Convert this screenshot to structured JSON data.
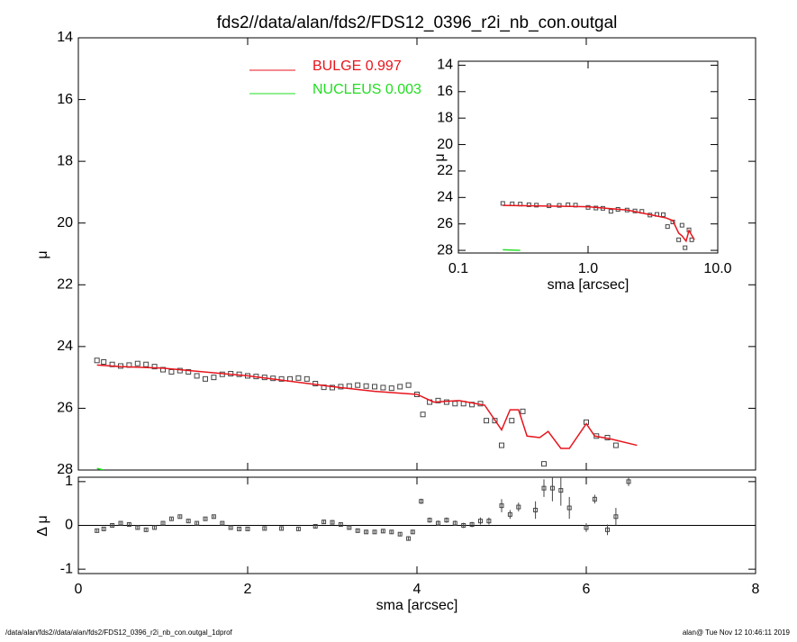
{
  "footer": {
    "left": "/data/alan/fds2//data/alan/fds2/FDS12_0396_r2i_nb_con.outgal_1dprof",
    "right": "alan@  Tue Nov 12 10:46:11 2019"
  },
  "chart_data": [
    {
      "type": "profile",
      "title": "fds2//data/alan/fds2/FDS12_0396_r2i_nb_con.outgal",
      "ylabel": "μ",
      "xlim": [
        0,
        8
      ],
      "ylim": [
        28,
        14
      ],
      "yticks": [
        14,
        16,
        18,
        20,
        22,
        24,
        26,
        28
      ],
      "points": {
        "color": "#444444",
        "x": [
          0.22,
          0.3,
          0.4,
          0.5,
          0.6,
          0.7,
          0.8,
          0.9,
          1.0,
          1.1,
          1.2,
          1.3,
          1.4,
          1.5,
          1.6,
          1.7,
          1.8,
          1.9,
          2.0,
          2.1,
          2.2,
          2.3,
          2.4,
          2.5,
          2.6,
          2.7,
          2.8,
          2.9,
          3.0,
          3.1,
          3.2,
          3.3,
          3.4,
          3.5,
          3.6,
          3.7,
          3.8,
          3.9,
          4.0,
          4.07,
          4.15,
          4.25,
          4.35,
          4.45,
          4.55,
          4.65,
          4.75,
          4.82,
          4.92,
          5.0,
          5.12,
          5.25,
          5.5,
          6.0,
          6.12,
          6.25,
          6.35
        ],
        "values": [
          24.45,
          24.5,
          24.58,
          24.63,
          24.6,
          24.55,
          24.58,
          24.65,
          24.75,
          24.82,
          24.78,
          24.82,
          24.95,
          25.05,
          25.0,
          24.9,
          24.88,
          24.9,
          24.95,
          24.97,
          25.0,
          25.03,
          25.05,
          25.05,
          25.02,
          25.05,
          25.2,
          25.32,
          25.33,
          25.3,
          25.28,
          25.25,
          25.28,
          25.3,
          25.33,
          25.35,
          25.3,
          25.25,
          25.55,
          26.2,
          25.8,
          25.75,
          25.8,
          25.85,
          25.85,
          25.88,
          25.85,
          26.4,
          26.4,
          27.2,
          26.4,
          26.1,
          27.8,
          26.45,
          26.9,
          26.95,
          27.2
        ]
      },
      "series": [
        {
          "name": "BULGE  0.997",
          "color": "#e8141c",
          "x": [
            0.22,
            0.5,
            1.0,
            2.0,
            3.0,
            3.5,
            4.0,
            4.2,
            4.5,
            4.8,
            5.0,
            5.1,
            5.2,
            5.3,
            5.45,
            5.55,
            5.7,
            5.8,
            6.0,
            6.1,
            6.3,
            6.6
          ],
          "values": [
            24.6,
            24.65,
            24.7,
            24.95,
            25.3,
            25.45,
            25.55,
            25.8,
            25.75,
            25.9,
            26.7,
            26.05,
            26.05,
            26.9,
            26.95,
            26.75,
            27.3,
            27.3,
            26.5,
            26.9,
            27.0,
            27.2
          ]
        },
        {
          "name": "NUCLEUS  0.003",
          "color": "#22dd22",
          "x": [
            0.22,
            0.3
          ],
          "values": [
            27.95,
            28.0
          ]
        }
      ]
    },
    {
      "type": "errorbar",
      "ylabel": "Δ μ",
      "xlabel": "sma [arcsec]",
      "xlim": [
        0,
        8
      ],
      "xticks": [
        0,
        2,
        4,
        6,
        8
      ],
      "ylim": [
        -1.1,
        1.1
      ],
      "yticks": [
        -1,
        0,
        1
      ],
      "color": "#444444",
      "x": [
        0.22,
        0.3,
        0.4,
        0.5,
        0.6,
        0.7,
        0.8,
        0.9,
        1.0,
        1.1,
        1.2,
        1.3,
        1.4,
        1.5,
        1.6,
        1.7,
        1.8,
        1.9,
        2.0,
        2.2,
        2.4,
        2.6,
        2.8,
        2.9,
        3.0,
        3.1,
        3.2,
        3.3,
        3.4,
        3.5,
        3.6,
        3.7,
        3.8,
        3.9,
        3.95,
        4.05,
        4.15,
        4.25,
        4.35,
        4.45,
        4.55,
        4.65,
        4.75,
        4.85,
        5.0,
        5.1,
        5.2,
        5.4,
        5.5,
        5.6,
        5.7,
        5.8,
        6.0,
        6.1,
        6.25,
        6.35,
        6.5
      ],
      "values": [
        -0.12,
        -0.08,
        0.0,
        0.05,
        0.02,
        -0.05,
        -0.1,
        -0.05,
        0.05,
        0.15,
        0.2,
        0.1,
        0.05,
        0.15,
        0.2,
        0.05,
        -0.05,
        -0.08,
        -0.08,
        -0.07,
        -0.07,
        -0.08,
        -0.02,
        0.08,
        0.07,
        0.02,
        -0.05,
        -0.12,
        -0.15,
        -0.15,
        -0.13,
        -0.15,
        -0.2,
        -0.3,
        -0.15,
        0.55,
        0.12,
        0.05,
        0.12,
        0.05,
        0.0,
        0.02,
        0.1,
        0.1,
        0.45,
        0.25,
        0.42,
        0.35,
        0.85,
        0.85,
        0.8,
        0.4,
        -0.05,
        0.6,
        -0.1,
        0.2,
        1.0
      ],
      "errors": [
        0.03,
        0.03,
        0.03,
        0.03,
        0.03,
        0.03,
        0.03,
        0.03,
        0.03,
        0.03,
        0.03,
        0.03,
        0.03,
        0.03,
        0.03,
        0.03,
        0.03,
        0.03,
        0.03,
        0.03,
        0.03,
        0.03,
        0.04,
        0.04,
        0.04,
        0.04,
        0.04,
        0.04,
        0.04,
        0.04,
        0.04,
        0.04,
        0.04,
        0.05,
        0.05,
        0.06,
        0.06,
        0.06,
        0.06,
        0.06,
        0.06,
        0.06,
        0.08,
        0.08,
        0.15,
        0.1,
        0.1,
        0.2,
        0.2,
        0.3,
        0.35,
        0.25,
        0.1,
        0.1,
        0.12,
        0.2,
        0.1
      ]
    },
    {
      "type": "profile",
      "xlabel": "sma [arcsec]",
      "ylabel": "μ",
      "xscale": "log",
      "xlim": [
        0.1,
        10
      ],
      "xticks": [
        0.1,
        {
          "value": 1,
          "label": "1.0"
        },
        {
          "value": 10,
          "label": "10.0"
        }
      ],
      "ylim": [
        28.2,
        13.7
      ],
      "yticks": [
        14,
        16,
        18,
        20,
        22,
        24,
        26,
        28
      ],
      "points": {
        "color": "#444444",
        "x": [
          0.22,
          0.26,
          0.3,
          0.35,
          0.4,
          0.5,
          0.6,
          0.7,
          0.8,
          1.0,
          1.15,
          1.3,
          1.5,
          1.7,
          2.0,
          2.3,
          2.6,
          3.0,
          3.4,
          3.8,
          4.1,
          4.5,
          5.0,
          5.3,
          5.6,
          6.0,
          6.3
        ],
        "values": [
          24.45,
          24.48,
          24.5,
          24.55,
          24.58,
          24.63,
          24.6,
          24.55,
          24.58,
          24.75,
          24.8,
          24.82,
          25.05,
          24.9,
          24.95,
          25.02,
          25.05,
          25.33,
          25.28,
          25.3,
          26.2,
          25.85,
          27.2,
          26.1,
          27.8,
          26.45,
          27.2
        ]
      },
      "series": [
        {
          "name": "BULGE  0.997",
          "color": "#e8141c",
          "x": [
            0.22,
            0.5,
            1.0,
            2.0,
            3.0,
            4.0,
            4.5,
            5.0,
            5.3,
            5.7,
            6.0,
            6.6
          ],
          "values": [
            24.6,
            24.65,
            24.7,
            24.95,
            25.3,
            25.55,
            25.75,
            26.7,
            26.9,
            27.3,
            26.5,
            27.2
          ]
        },
        {
          "name": "NUCLEUS  0.003",
          "color": "#22dd22",
          "x": [
            0.22,
            0.3
          ],
          "values": [
            27.95,
            28.0
          ]
        }
      ]
    }
  ]
}
